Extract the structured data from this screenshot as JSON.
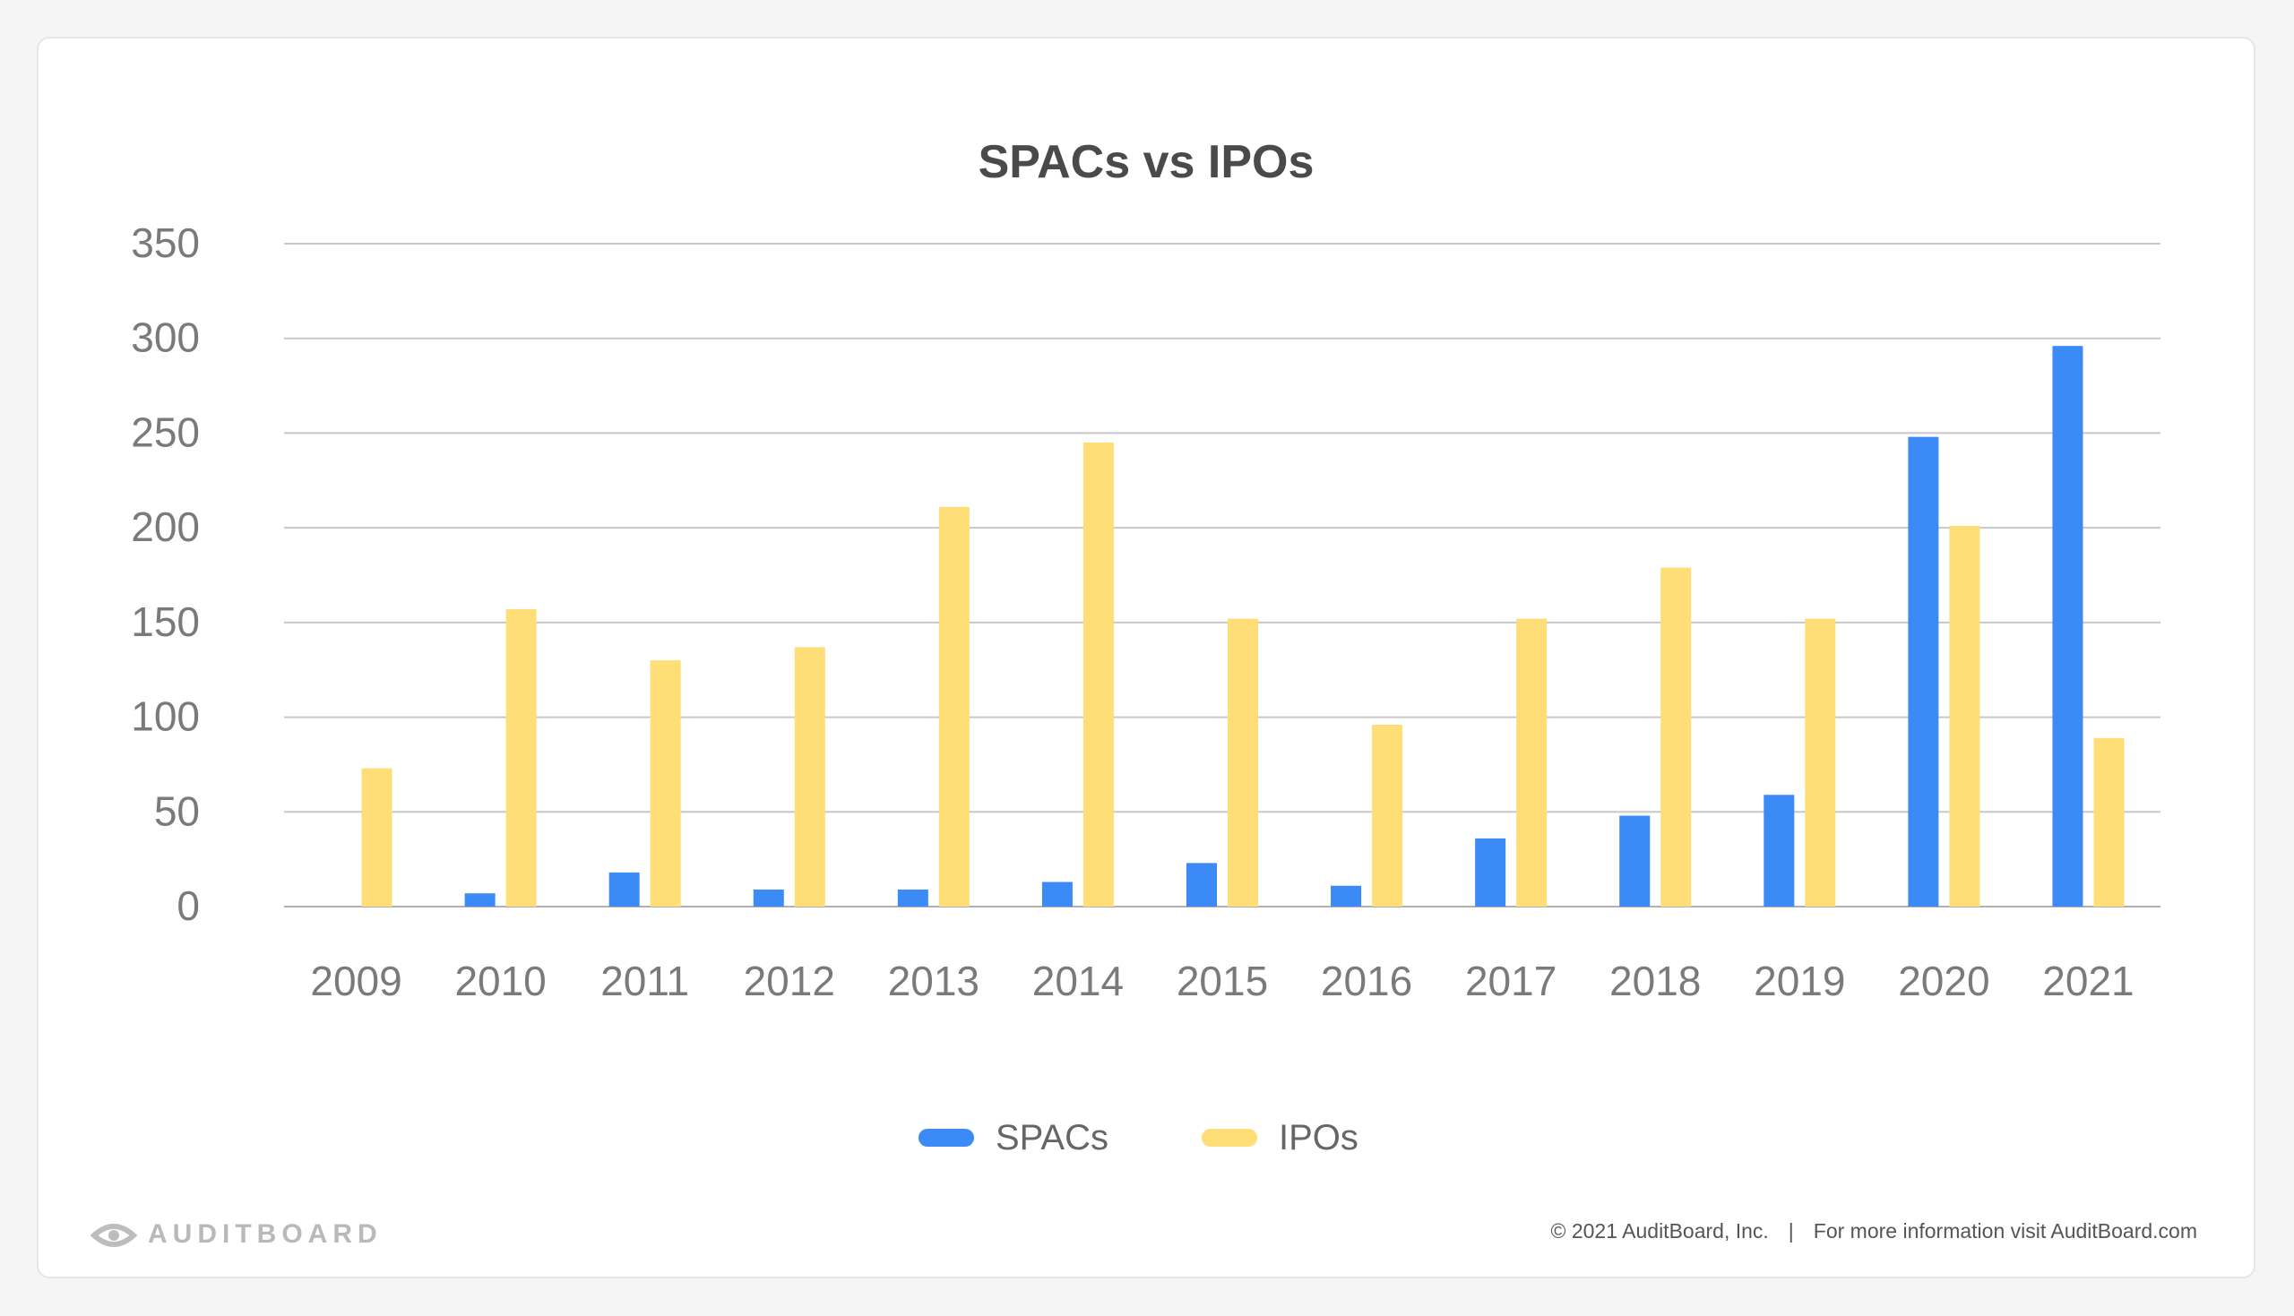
{
  "chart_data": {
    "type": "bar",
    "title": "SPACs vs IPOs",
    "xlabel": "",
    "ylabel": "",
    "ylim": [
      0,
      350
    ],
    "yticks": [
      0,
      50,
      100,
      150,
      200,
      250,
      300,
      350
    ],
    "grid": true,
    "legend_position": "bottom-center",
    "categories": [
      "2009",
      "2010",
      "2011",
      "2012",
      "2013",
      "2014",
      "2015",
      "2016",
      "2017",
      "2018",
      "2019",
      "2020",
      "2021"
    ],
    "series": [
      {
        "name": "SPACs",
        "color": "#3c8af6",
        "values": [
          0,
          7,
          18,
          9,
          9,
          13,
          23,
          11,
          36,
          48,
          59,
          248,
          296
        ]
      },
      {
        "name": "IPOs",
        "color": "#ffdd77",
        "values": [
          73,
          157,
          130,
          137,
          211,
          245,
          152,
          96,
          152,
          179,
          152,
          201,
          89
        ]
      }
    ]
  },
  "footer": {
    "logo_text": "AUDITBOARD",
    "logo_icon": "auditboard-logo-icon",
    "copyright": "© 2021  AuditBoard, Inc.",
    "separator": "|",
    "info": "For more information visit AuditBoard.com"
  }
}
